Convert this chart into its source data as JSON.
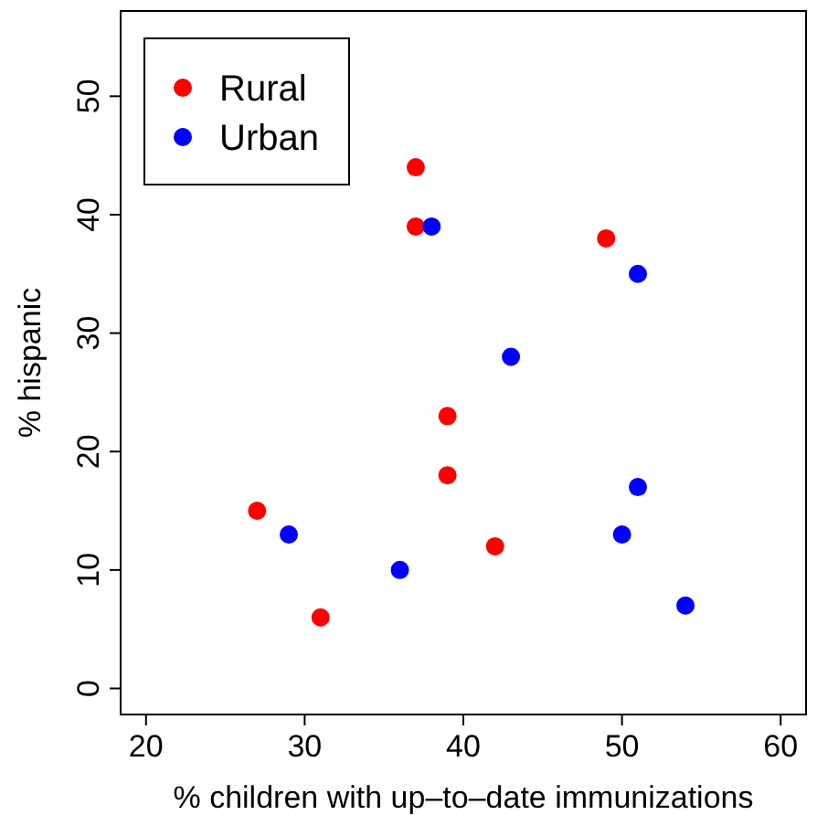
{
  "chart_data": {
    "type": "scatter",
    "xlabel": "% children with up–to–date immunizations",
    "ylabel": "% hispanic",
    "xlim": [
      18.4,
      61.6
    ],
    "ylim": [
      -2.2,
      57.2
    ],
    "xticks": [
      20,
      30,
      40,
      50,
      60
    ],
    "yticks": [
      0,
      10,
      20,
      30,
      40,
      50
    ],
    "grid": false,
    "legend": "top left",
    "marker": "circle",
    "series": [
      {
        "name": "Rural",
        "color": "#ff0000",
        "x": [
          27,
          31,
          37,
          37,
          39,
          39,
          42,
          49
        ],
        "values": [
          15,
          6,
          44,
          39,
          23,
          18,
          12,
          38
        ]
      },
      {
        "name": "Urban",
        "color": "#0000ff",
        "x": [
          29,
          36,
          38,
          43,
          51,
          51,
          50,
          54
        ],
        "values": [
          13,
          10,
          39,
          28,
          35,
          17,
          13,
          7
        ]
      }
    ]
  }
}
